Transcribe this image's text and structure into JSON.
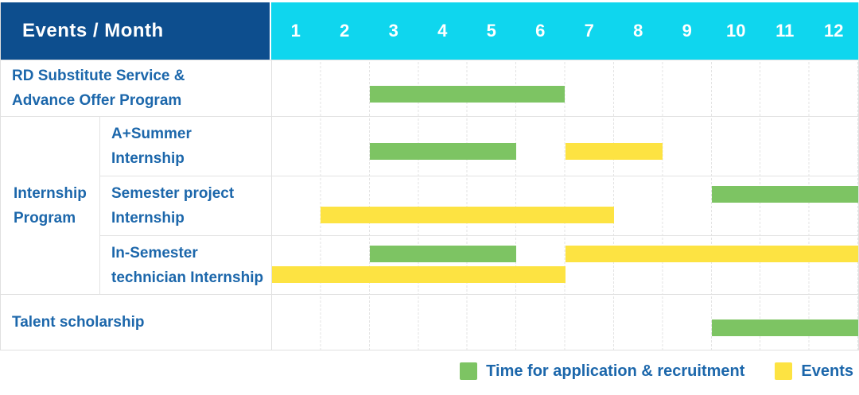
{
  "chart_data": {
    "type": "gantt",
    "title": "Events / Month",
    "x_unit": "month",
    "x_range": [
      1,
      12
    ],
    "x_ticks": [
      "1",
      "2",
      "3",
      "4",
      "5",
      "6",
      "7",
      "8",
      "9",
      "10",
      "11",
      "12"
    ],
    "legend": [
      {
        "key": "application",
        "label": "Time for application & recruitment",
        "color": "#7dc463"
      },
      {
        "key": "events",
        "label": "Events",
        "color": "#fde342"
      }
    ],
    "groups": [
      {
        "label": "Internship\nProgram",
        "row_indexes": [
          1,
          2,
          3
        ]
      }
    ],
    "rows": [
      {
        "label": "RD Substitute Service &\nAdvance Offer Program",
        "group": null,
        "bars": [
          {
            "series": "application",
            "start_month": 3,
            "end_month": 6,
            "line": 1
          }
        ]
      },
      {
        "label": "A+Summer\nInternship",
        "group": "Internship Program",
        "bars": [
          {
            "series": "application",
            "start_month": 3,
            "end_month": 5,
            "line": 1
          },
          {
            "series": "events",
            "start_month": 7,
            "end_month": 8,
            "line": 1
          }
        ]
      },
      {
        "label": "Semester project\nInternship",
        "group": "Internship Program",
        "bars": [
          {
            "series": "application",
            "start_month": 10,
            "end_month": 12,
            "line": 1
          },
          {
            "series": "events",
            "start_month": 2,
            "end_month": 7,
            "line": 2
          }
        ]
      },
      {
        "label": "In-Semester\ntechnician Internship",
        "group": "Internship Program",
        "bars": [
          {
            "series": "application",
            "start_month": 3,
            "end_month": 5,
            "line": 1
          },
          {
            "series": "events",
            "start_month": 7,
            "end_month": 12,
            "line": 1
          },
          {
            "series": "events",
            "start_month": 1,
            "end_month": 6,
            "line": 2
          }
        ]
      },
      {
        "label": "Talent scholarship",
        "group": null,
        "bars": [
          {
            "series": "application",
            "start_month": 10,
            "end_month": 12,
            "line": 1
          }
        ]
      }
    ],
    "colors": {
      "application": "#7dc463",
      "events": "#fde342",
      "header_bg": "#0d4e8e",
      "months_bg": "#0fd6ee",
      "label_text": "#1c67ab"
    }
  }
}
